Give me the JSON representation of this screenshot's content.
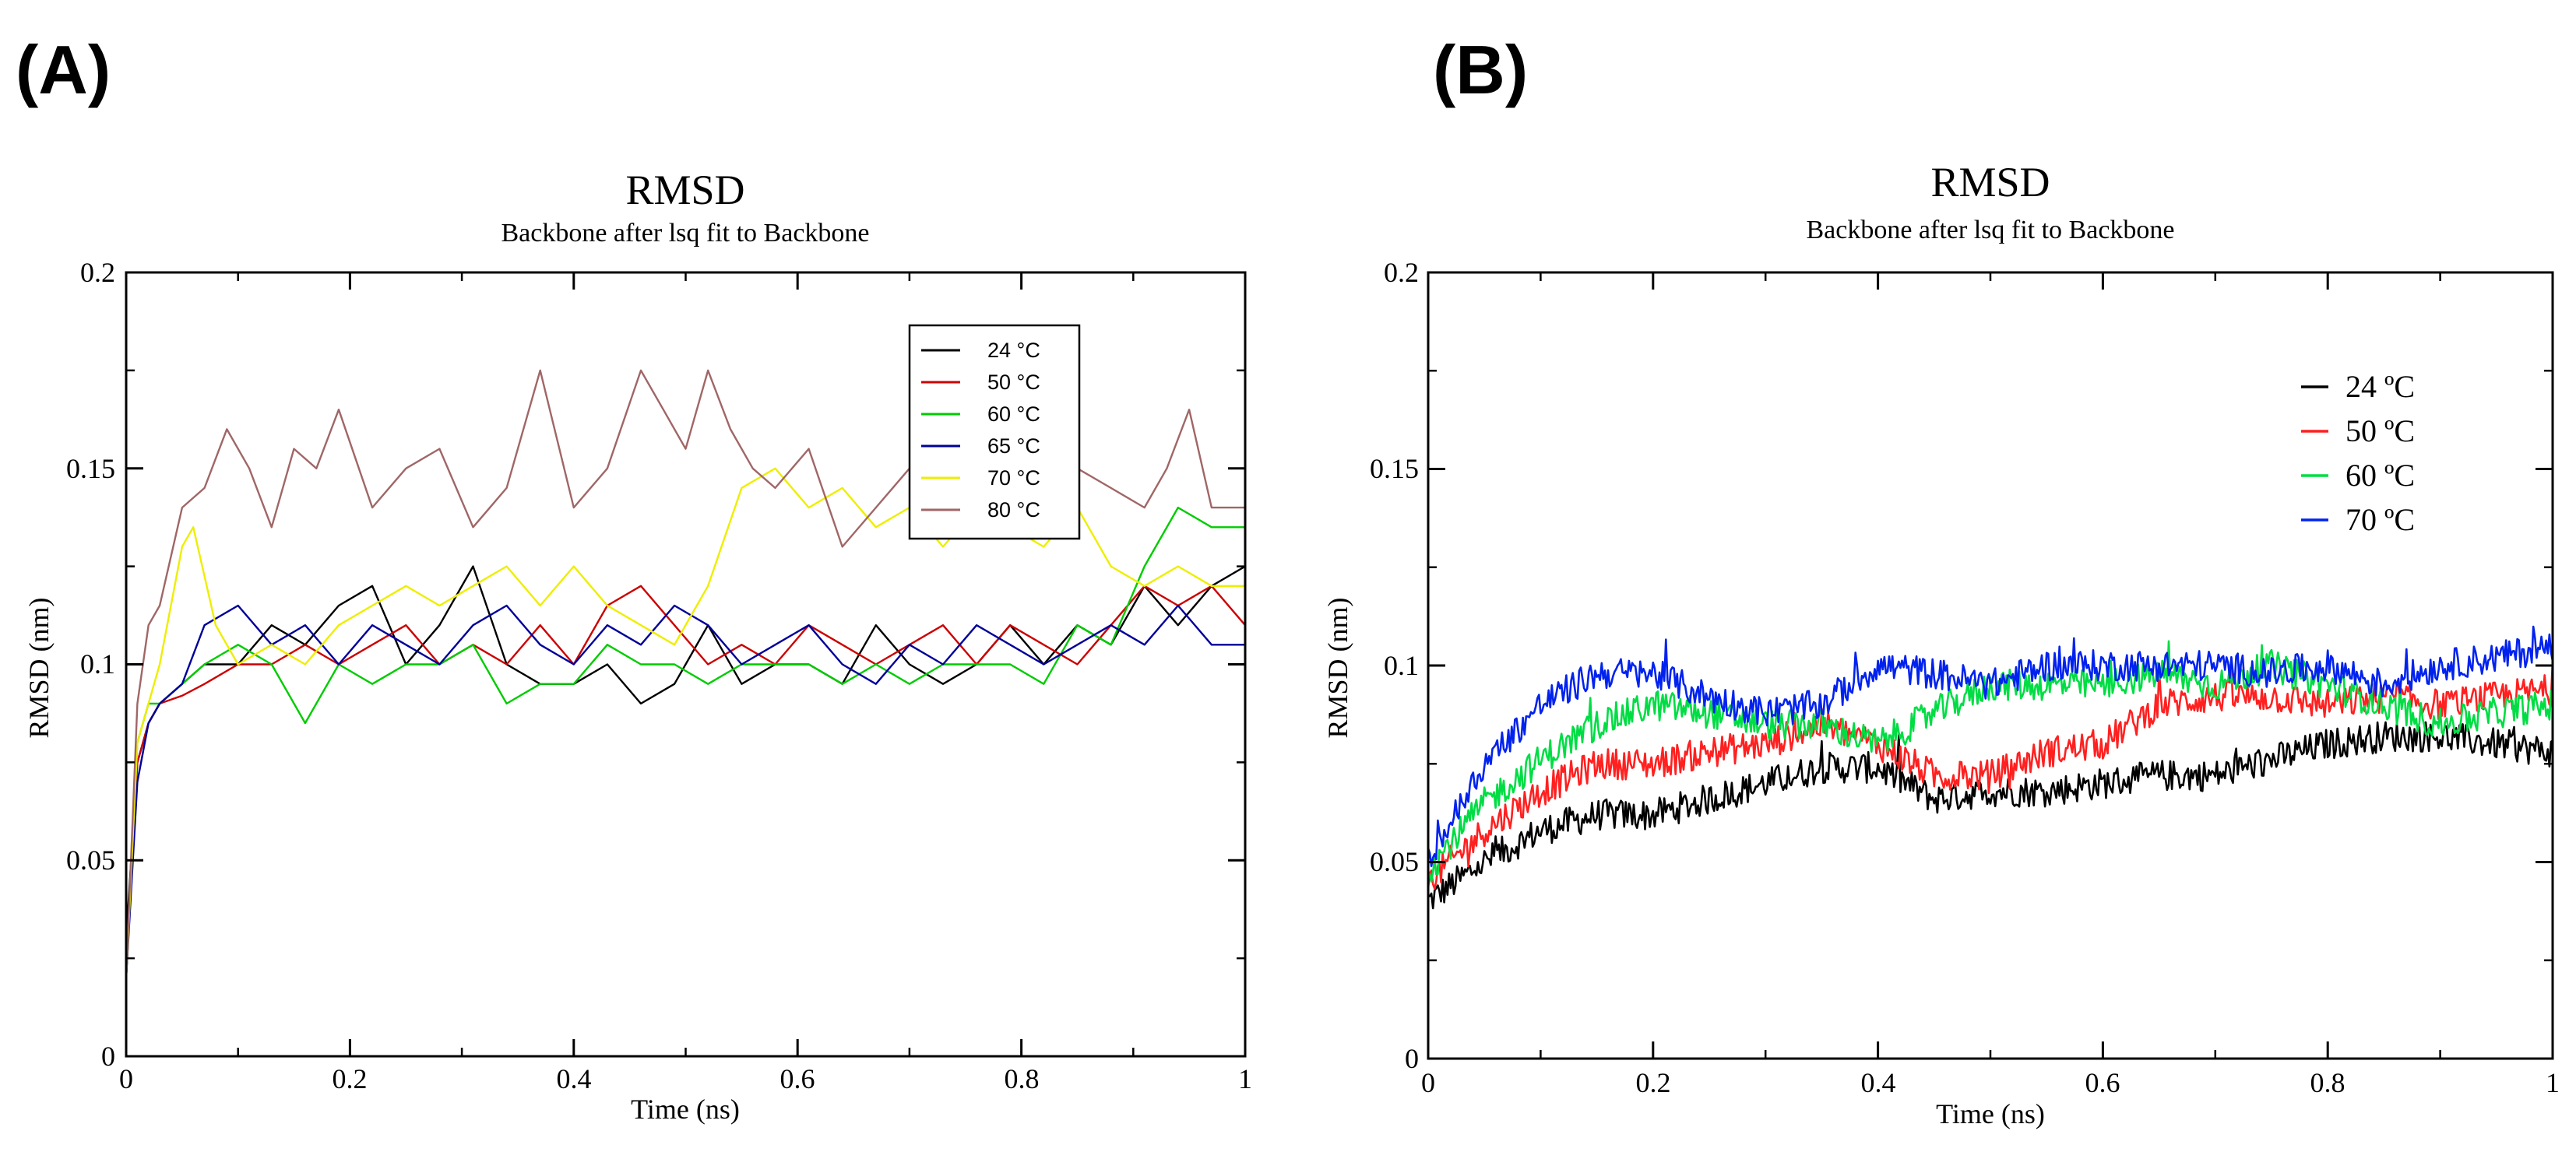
{
  "chart_data": [
    {
      "id": "A",
      "panel_label": "(A)",
      "type": "line",
      "title": "RMSD",
      "subtitle": "Backbone after lsq fit to Backbone",
      "xlabel": "Time (ns)",
      "ylabel": "RMSD (nm)",
      "xlim": [
        0,
        1
      ],
      "ylim": [
        0,
        0.2
      ],
      "xticks": [
        0,
        0.2,
        0.4,
        0.6,
        0.8,
        1
      ],
      "xtick_labels": [
        "0",
        "0.2",
        "0.4",
        "0.6",
        "0.8",
        "1"
      ],
      "yticks": [
        0,
        0.05,
        0.1,
        0.15,
        0.2
      ],
      "ytick_labels": [
        "0",
        "0.05",
        "0.1",
        "0.15",
        "0.2"
      ],
      "grid": false,
      "legend": "top-right, boxed",
      "series": [
        {
          "name": "24 °C",
          "color": "#000000",
          "x": [
            0,
            0.01,
            0.02,
            0.03,
            0.05,
            0.07,
            0.1,
            0.13,
            0.16,
            0.19,
            0.22,
            0.25,
            0.28,
            0.31,
            0.34,
            0.37,
            0.4,
            0.43,
            0.46,
            0.49,
            0.52,
            0.55,
            0.58,
            0.61,
            0.64,
            0.67,
            0.7,
            0.73,
            0.76,
            0.79,
            0.82,
            0.85,
            0.88,
            0.91,
            0.94,
            0.97,
            1.0
          ],
          "values": [
            0.03,
            0.075,
            0.085,
            0.09,
            0.095,
            0.1,
            0.1,
            0.11,
            0.105,
            0.115,
            0.12,
            0.1,
            0.11,
            0.125,
            0.1,
            0.095,
            0.095,
            0.1,
            0.09,
            0.095,
            0.11,
            0.095,
            0.1,
            0.1,
            0.095,
            0.11,
            0.1,
            0.095,
            0.1,
            0.11,
            0.1,
            0.11,
            0.105,
            0.12,
            0.11,
            0.12,
            0.125
          ]
        },
        {
          "name": "50 °C",
          "color": "#cc0000",
          "x": [
            0,
            0.01,
            0.02,
            0.03,
            0.05,
            0.07,
            0.1,
            0.13,
            0.16,
            0.19,
            0.22,
            0.25,
            0.28,
            0.31,
            0.34,
            0.37,
            0.4,
            0.43,
            0.46,
            0.49,
            0.52,
            0.55,
            0.58,
            0.61,
            0.64,
            0.67,
            0.7,
            0.73,
            0.76,
            0.79,
            0.82,
            0.85,
            0.88,
            0.91,
            0.94,
            0.97,
            1.0
          ],
          "values": [
            0.02,
            0.075,
            0.085,
            0.09,
            0.092,
            0.095,
            0.1,
            0.1,
            0.105,
            0.1,
            0.105,
            0.11,
            0.1,
            0.105,
            0.1,
            0.11,
            0.1,
            0.115,
            0.12,
            0.11,
            0.1,
            0.105,
            0.1,
            0.11,
            0.105,
            0.1,
            0.105,
            0.11,
            0.1,
            0.11,
            0.105,
            0.1,
            0.11,
            0.12,
            0.115,
            0.12,
            0.11
          ]
        },
        {
          "name": "60 °C",
          "color": "#00cc00",
          "x": [
            0,
            0.01,
            0.02,
            0.03,
            0.05,
            0.07,
            0.1,
            0.13,
            0.16,
            0.19,
            0.22,
            0.25,
            0.28,
            0.31,
            0.34,
            0.37,
            0.4,
            0.43,
            0.46,
            0.49,
            0.52,
            0.55,
            0.58,
            0.61,
            0.64,
            0.67,
            0.7,
            0.73,
            0.76,
            0.79,
            0.82,
            0.85,
            0.88,
            0.91,
            0.94,
            0.97,
            1.0
          ],
          "values": [
            0.02,
            0.08,
            0.09,
            0.09,
            0.095,
            0.1,
            0.105,
            0.1,
            0.085,
            0.1,
            0.095,
            0.1,
            0.1,
            0.105,
            0.09,
            0.095,
            0.095,
            0.105,
            0.1,
            0.1,
            0.095,
            0.1,
            0.1,
            0.1,
            0.095,
            0.1,
            0.095,
            0.1,
            0.1,
            0.1,
            0.095,
            0.11,
            0.105,
            0.125,
            0.14,
            0.135,
            0.135
          ]
        },
        {
          "name": "65 °C",
          "color": "#000099",
          "x": [
            0,
            0.01,
            0.02,
            0.03,
            0.05,
            0.07,
            0.1,
            0.13,
            0.16,
            0.19,
            0.22,
            0.25,
            0.28,
            0.31,
            0.34,
            0.37,
            0.4,
            0.43,
            0.46,
            0.49,
            0.52,
            0.55,
            0.58,
            0.61,
            0.64,
            0.67,
            0.7,
            0.73,
            0.76,
            0.79,
            0.82,
            0.85,
            0.88,
            0.91,
            0.94,
            0.97,
            1.0
          ],
          "values": [
            0.02,
            0.07,
            0.085,
            0.09,
            0.095,
            0.11,
            0.115,
            0.105,
            0.11,
            0.1,
            0.11,
            0.105,
            0.1,
            0.11,
            0.115,
            0.105,
            0.1,
            0.11,
            0.105,
            0.115,
            0.11,
            0.1,
            0.105,
            0.11,
            0.1,
            0.095,
            0.105,
            0.1,
            0.11,
            0.105,
            0.1,
            0.105,
            0.11,
            0.105,
            0.115,
            0.105,
            0.105
          ]
        },
        {
          "name": "70 °C",
          "color": "#eeee00",
          "x": [
            0,
            0.01,
            0.02,
            0.03,
            0.05,
            0.06,
            0.08,
            0.1,
            0.13,
            0.16,
            0.19,
            0.22,
            0.25,
            0.28,
            0.31,
            0.34,
            0.37,
            0.4,
            0.43,
            0.46,
            0.49,
            0.52,
            0.55,
            0.58,
            0.61,
            0.64,
            0.67,
            0.7,
            0.73,
            0.76,
            0.79,
            0.82,
            0.85,
            0.88,
            0.91,
            0.94,
            0.97,
            1.0
          ],
          "values": [
            0.02,
            0.08,
            0.09,
            0.1,
            0.13,
            0.135,
            0.11,
            0.1,
            0.105,
            0.1,
            0.11,
            0.115,
            0.12,
            0.115,
            0.12,
            0.125,
            0.115,
            0.125,
            0.115,
            0.11,
            0.105,
            0.12,
            0.145,
            0.15,
            0.14,
            0.145,
            0.135,
            0.14,
            0.13,
            0.14,
            0.135,
            0.13,
            0.14,
            0.125,
            0.12,
            0.125,
            0.12,
            0.12
          ]
        },
        {
          "name": "80 °C",
          "color": "#a06666",
          "x": [
            0,
            0.01,
            0.02,
            0.03,
            0.05,
            0.07,
            0.09,
            0.11,
            0.13,
            0.15,
            0.17,
            0.19,
            0.22,
            0.25,
            0.28,
            0.31,
            0.34,
            0.37,
            0.4,
            0.43,
            0.46,
            0.48,
            0.5,
            0.52,
            0.54,
            0.56,
            0.58,
            0.61,
            0.64,
            0.67,
            0.7,
            0.73,
            0.76,
            0.79,
            0.82,
            0.85,
            0.88,
            0.91,
            0.93,
            0.95,
            0.97,
            1.0
          ],
          "values": [
            0.02,
            0.09,
            0.11,
            0.115,
            0.14,
            0.145,
            0.16,
            0.15,
            0.135,
            0.155,
            0.15,
            0.165,
            0.14,
            0.15,
            0.155,
            0.135,
            0.145,
            0.175,
            0.14,
            0.15,
            0.175,
            0.165,
            0.155,
            0.175,
            0.16,
            0.15,
            0.145,
            0.155,
            0.13,
            0.14,
            0.15,
            0.145,
            0.14,
            0.145,
            0.14,
            0.15,
            0.145,
            0.14,
            0.15,
            0.165,
            0.14,
            0.14
          ]
        }
      ]
    },
    {
      "id": "B",
      "panel_label": "(B)",
      "type": "line",
      "title": "RMSD",
      "subtitle": "Backbone after lsq fit to Backbone",
      "xlabel": "Time (ns)",
      "ylabel": "RMSD (nm)",
      "xlim": [
        0,
        1
      ],
      "ylim": [
        0,
        0.2
      ],
      "xticks": [
        0,
        0.2,
        0.4,
        0.6,
        0.8,
        1
      ],
      "xtick_labels": [
        "0",
        "0.2",
        "0.4",
        "0.6",
        "0.8",
        "1"
      ],
      "yticks": [
        0,
        0.05,
        0.1,
        0.15,
        0.2
      ],
      "ytick_labels": [
        "0",
        "0.05",
        "0.1",
        "0.15",
        "0.2"
      ],
      "grid": false,
      "legend": "upper-right, no box",
      "noise_amplitude": 0.004,
      "series": [
        {
          "name": "24 ºC",
          "color": "#000000",
          "x": [
            0,
            0.05,
            0.1,
            0.15,
            0.2,
            0.25,
            0.3,
            0.35,
            0.4,
            0.45,
            0.5,
            0.55,
            0.6,
            0.65,
            0.7,
            0.75,
            0.8,
            0.85,
            0.9,
            0.95,
            1.0
          ],
          "values": [
            0.04,
            0.05,
            0.058,
            0.062,
            0.062,
            0.066,
            0.07,
            0.074,
            0.074,
            0.066,
            0.068,
            0.068,
            0.07,
            0.072,
            0.072,
            0.076,
            0.08,
            0.082,
            0.082,
            0.08,
            0.078
          ]
        },
        {
          "name": "50 ºC",
          "color": "#ff2020",
          "x": [
            0,
            0.05,
            0.1,
            0.15,
            0.2,
            0.25,
            0.3,
            0.35,
            0.4,
            0.45,
            0.5,
            0.55,
            0.6,
            0.65,
            0.7,
            0.75,
            0.8,
            0.85,
            0.9,
            0.95,
            1.0
          ],
          "values": [
            0.045,
            0.058,
            0.068,
            0.075,
            0.075,
            0.078,
            0.08,
            0.085,
            0.08,
            0.072,
            0.072,
            0.078,
            0.08,
            0.09,
            0.092,
            0.092,
            0.09,
            0.092,
            0.09,
            0.092,
            0.094
          ]
        },
        {
          "name": "60 ºC",
          "color": "#00dd44",
          "x": [
            0,
            0.05,
            0.1,
            0.15,
            0.2,
            0.25,
            0.3,
            0.35,
            0.4,
            0.45,
            0.5,
            0.55,
            0.6,
            0.65,
            0.7,
            0.75,
            0.8,
            0.85,
            0.9,
            0.95,
            1.0
          ],
          "values": [
            0.048,
            0.065,
            0.076,
            0.085,
            0.09,
            0.088,
            0.085,
            0.085,
            0.08,
            0.088,
            0.095,
            0.095,
            0.095,
            0.098,
            0.095,
            0.1,
            0.095,
            0.09,
            0.085,
            0.088,
            0.09
          ]
        },
        {
          "name": "70 ºC",
          "color": "#0022ee",
          "x": [
            0,
            0.05,
            0.1,
            0.15,
            0.2,
            0.25,
            0.3,
            0.35,
            0.4,
            0.45,
            0.5,
            0.55,
            0.6,
            0.65,
            0.7,
            0.75,
            0.8,
            0.85,
            0.9,
            0.95,
            1.0
          ],
          "values": [
            0.05,
            0.075,
            0.09,
            0.098,
            0.098,
            0.092,
            0.088,
            0.09,
            0.1,
            0.098,
            0.095,
            0.1,
            0.1,
            0.1,
            0.1,
            0.098,
            0.1,
            0.095,
            0.1,
            0.102,
            0.105
          ]
        }
      ]
    }
  ]
}
